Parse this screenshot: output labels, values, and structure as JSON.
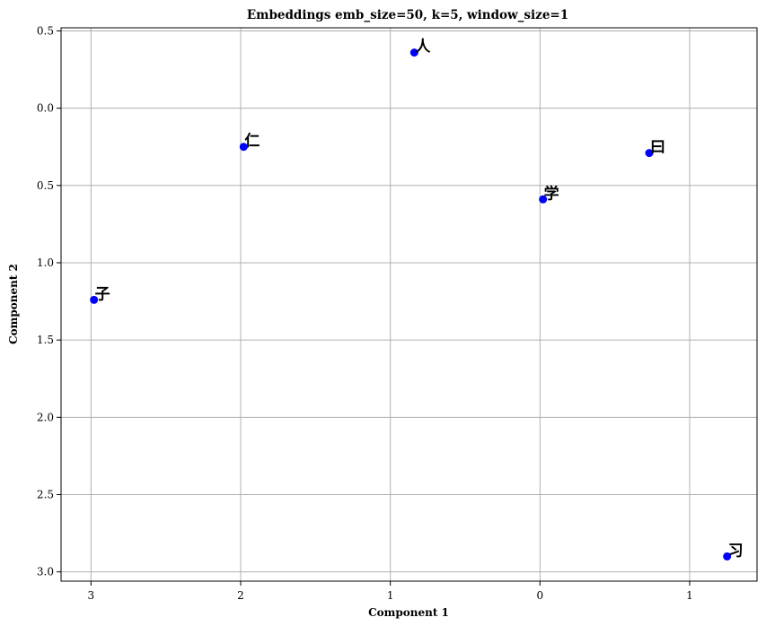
{
  "chart_data": {
    "type": "scatter",
    "title": "Embeddings emb_size=50, k=5, window_size=1",
    "xlabel": "Component 1",
    "ylabel": "Component 2",
    "xlim": [
      -3.2,
      1.45
    ],
    "ylim": [
      3.06,
      -0.52
    ],
    "x_ticks": [
      {
        "value": -3,
        "label": "3"
      },
      {
        "value": -2,
        "label": "2"
      },
      {
        "value": -1,
        "label": "1"
      },
      {
        "value": 0,
        "label": "0"
      },
      {
        "value": 1,
        "label": "1"
      }
    ],
    "y_ticks": [
      {
        "value": -0.5,
        "label": "0.5"
      },
      {
        "value": 0.0,
        "label": "0.0"
      },
      {
        "value": 0.5,
        "label": "0.5"
      },
      {
        "value": 1.0,
        "label": "1.0"
      },
      {
        "value": 1.5,
        "label": "1.5"
      },
      {
        "value": 2.0,
        "label": "2.0"
      },
      {
        "value": 2.5,
        "label": "2.5"
      },
      {
        "value": 3.0,
        "label": "3.0"
      }
    ],
    "grid": true,
    "marker_color": "#0000ff",
    "points": [
      {
        "label": "人",
        "x": -0.84,
        "y": -0.36
      },
      {
        "label": "仁",
        "x": -1.98,
        "y": 0.25
      },
      {
        "label": "曰",
        "x": 0.73,
        "y": 0.29
      },
      {
        "label": "学",
        "x": 0.02,
        "y": 0.59
      },
      {
        "label": "子",
        "x": -2.98,
        "y": 1.24
      },
      {
        "label": "习",
        "x": 1.25,
        "y": 2.9
      }
    ]
  }
}
